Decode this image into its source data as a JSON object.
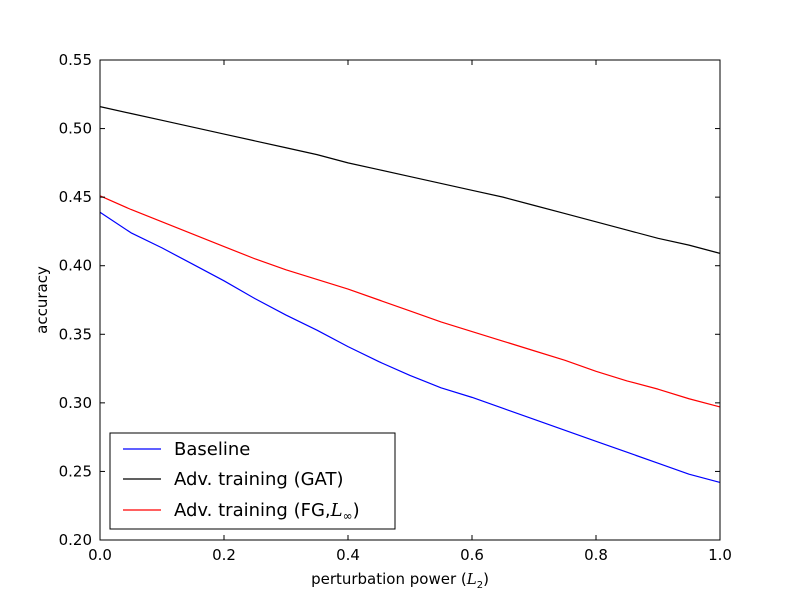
{
  "chart_data": {
    "type": "line",
    "title": "",
    "xlabel": "perturbation power (",
    "xlabel_math": "L",
    "xlabel_math_sub": "2",
    "xlabel_suffix": ")",
    "ylabel": "accuracy",
    "xlim": [
      0.0,
      1.0
    ],
    "ylim": [
      0.2,
      0.55
    ],
    "xticks": [
      0.0,
      0.2,
      0.4,
      0.6,
      0.8,
      1.0
    ],
    "xtick_labels": [
      "0.0",
      "0.2",
      "0.4",
      "0.6",
      "0.8",
      "1.0"
    ],
    "yticks": [
      0.2,
      0.25,
      0.3,
      0.35,
      0.4,
      0.45,
      0.5,
      0.55
    ],
    "ytick_labels": [
      "0.20",
      "0.25",
      "0.30",
      "0.35",
      "0.40",
      "0.45",
      "0.50",
      "0.55"
    ],
    "grid": false,
    "legend_position": "lower-left",
    "x": [
      0.0,
      0.05,
      0.1,
      0.15,
      0.2,
      0.25,
      0.3,
      0.35,
      0.4,
      0.45,
      0.5,
      0.55,
      0.6,
      0.65,
      0.7,
      0.75,
      0.8,
      0.85,
      0.9,
      0.95,
      1.0
    ],
    "series": [
      {
        "name": "Baseline",
        "color": "#0000ff",
        "values": [
          0.439,
          0.424,
          0.413,
          0.401,
          0.389,
          0.376,
          0.364,
          0.353,
          0.341,
          0.33,
          0.32,
          0.311,
          0.304,
          0.296,
          0.288,
          0.28,
          0.272,
          0.264,
          0.256,
          0.248,
          0.242
        ]
      },
      {
        "name": "Adv. training (GAT)",
        "color": "#000000",
        "values": [
          0.516,
          0.511,
          0.506,
          0.501,
          0.496,
          0.491,
          0.486,
          0.481,
          0.475,
          0.47,
          0.465,
          0.46,
          0.455,
          0.45,
          0.444,
          0.438,
          0.432,
          0.426,
          0.42,
          0.415,
          0.409
        ]
      },
      {
        "name": "Adv. training (FG,",
        "name_math": "L",
        "name_math_sub": "∞",
        "name_suffix": ")",
        "color": "#ff0000",
        "values": [
          0.451,
          0.441,
          0.432,
          0.423,
          0.414,
          0.405,
          0.397,
          0.39,
          0.383,
          0.375,
          0.367,
          0.359,
          0.352,
          0.345,
          0.338,
          0.331,
          0.323,
          0.316,
          0.31,
          0.303,
          0.297
        ]
      }
    ]
  }
}
